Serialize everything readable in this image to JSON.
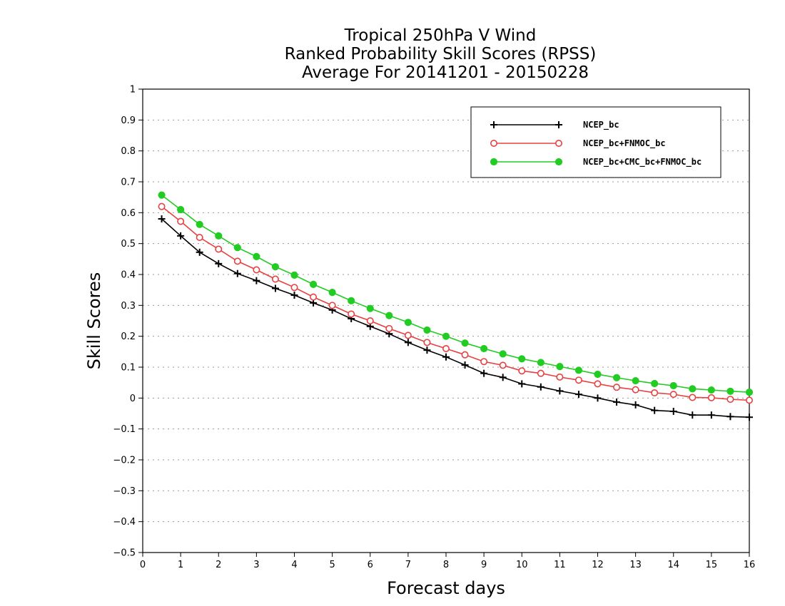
{
  "chart_data": {
    "type": "line",
    "title_lines": [
      "Tropical 250hPa V Wind",
      "Ranked Probability Skill Scores (RPSS)",
      "Average For 20141201 - 20150228"
    ],
    "xlabel": "Forecast days",
    "ylabel": "Skill Scores",
    "xlim": [
      0,
      16
    ],
    "ylim": [
      -0.5,
      1
    ],
    "xticks": [
      0,
      1,
      2,
      3,
      4,
      5,
      6,
      7,
      8,
      9,
      10,
      11,
      12,
      13,
      14,
      15,
      16
    ],
    "xtick_labels": [
      "0",
      "1",
      "2",
      "3",
      "4",
      "5",
      "6",
      "7",
      "8",
      "9",
      "10",
      "11",
      "12",
      "13",
      "14",
      "15",
      "16"
    ],
    "yticks": [
      -0.5,
      -0.4,
      -0.3,
      -0.2,
      -0.1,
      0,
      0.1,
      0.2,
      0.3,
      0.4,
      0.5,
      0.6,
      0.7,
      0.8,
      0.9,
      1
    ],
    "ytick_labels": [
      "−0.5",
      "−0.4",
      "−0.3",
      "−0.2",
      "−0.1",
      "0",
      "0.1",
      "0.2",
      "0.3",
      "0.4",
      "0.5",
      "0.6",
      "0.7",
      "0.8",
      "0.9",
      "1"
    ],
    "grid": "horizontal dotted",
    "legend_position": "top-right",
    "x": [
      0.5,
      1,
      1.5,
      2,
      2.5,
      3,
      3.5,
      4,
      4.5,
      5,
      5.5,
      6,
      6.5,
      7,
      7.5,
      8,
      8.5,
      9,
      9.5,
      10,
      10.5,
      11,
      11.5,
      12,
      12.5,
      13,
      13.5,
      14,
      14.5,
      15,
      15.5,
      16
    ],
    "series": [
      {
        "name": "NCEP_bc",
        "color": "#000000",
        "marker": "plus",
        "values": [
          0.58,
          0.525,
          0.472,
          0.435,
          0.403,
          0.38,
          0.355,
          0.333,
          0.308,
          0.285,
          0.257,
          0.232,
          0.208,
          0.18,
          0.155,
          0.133,
          0.107,
          0.08,
          0.067,
          0.046,
          0.036,
          0.023,
          0.012,
          0.0,
          -0.013,
          -0.022,
          -0.04,
          -0.043,
          -0.055,
          -0.055,
          -0.06,
          -0.062
        ]
      },
      {
        "name": "NCEP_bc+FNMOC_bc",
        "color": "#e84040",
        "marker": "open-circle",
        "values": [
          0.62,
          0.572,
          0.52,
          0.482,
          0.443,
          0.415,
          0.385,
          0.358,
          0.327,
          0.3,
          0.272,
          0.25,
          0.225,
          0.203,
          0.18,
          0.16,
          0.14,
          0.118,
          0.106,
          0.088,
          0.08,
          0.068,
          0.058,
          0.046,
          0.035,
          0.027,
          0.017,
          0.012,
          0.002,
          0.001,
          -0.004,
          -0.007
        ]
      },
      {
        "name": "NCEP_bc+CMC_bc+FNMOC_bc",
        "color": "#22cc22",
        "marker": "filled-circle",
        "values": [
          0.657,
          0.61,
          0.562,
          0.525,
          0.487,
          0.458,
          0.425,
          0.398,
          0.368,
          0.342,
          0.315,
          0.29,
          0.267,
          0.245,
          0.22,
          0.2,
          0.178,
          0.16,
          0.143,
          0.127,
          0.115,
          0.102,
          0.09,
          0.077,
          0.066,
          0.056,
          0.047,
          0.04,
          0.03,
          0.026,
          0.022,
          0.019
        ]
      }
    ]
  }
}
